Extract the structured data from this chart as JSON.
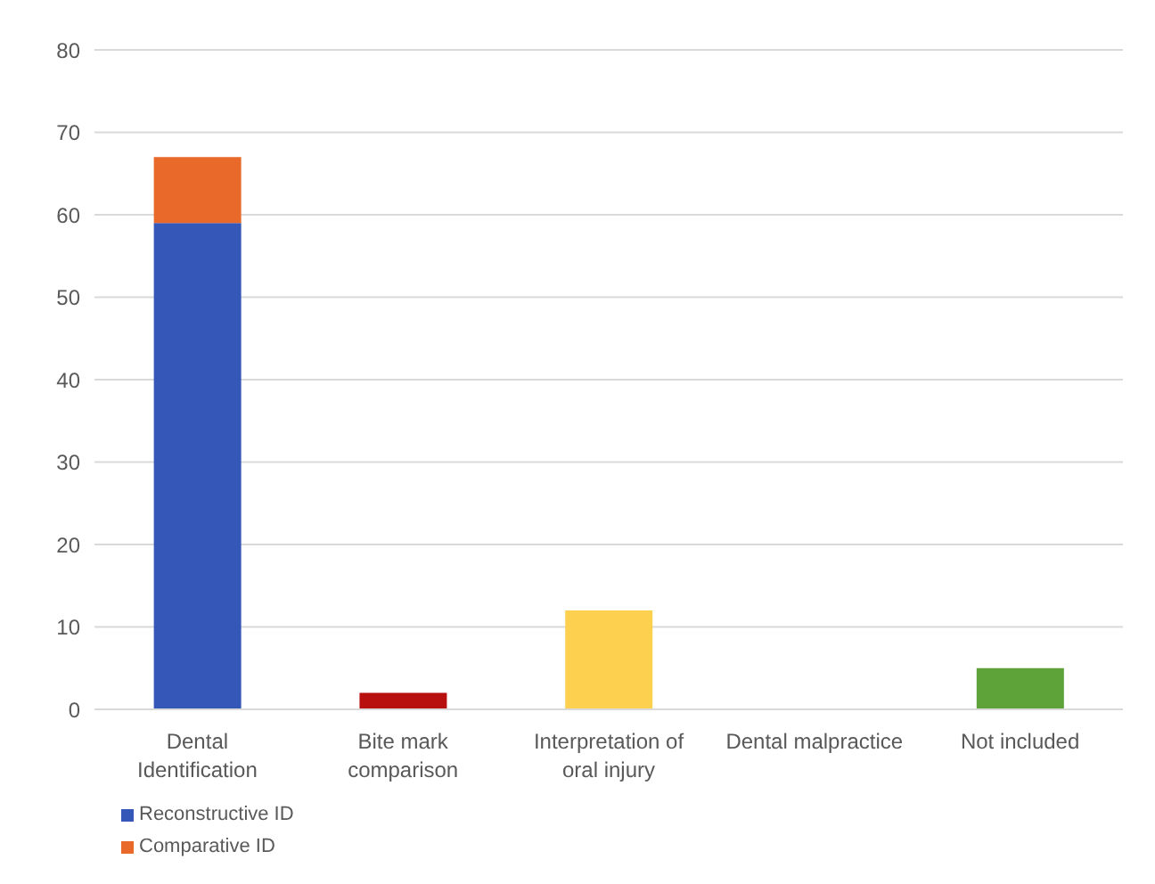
{
  "chart_data": {
    "type": "bar",
    "stacked": true,
    "categories": [
      "Dental Identification",
      "Bite mark comparison",
      "Interpretation of oral injury",
      "Dental malpractice",
      "Not included"
    ],
    "series": [
      {
        "name": "Reconstructive ID",
        "color": "#3457b8",
        "values": [
          59,
          null,
          null,
          null,
          null
        ]
      },
      {
        "name": "Comparative ID",
        "color": "#e8692a",
        "values": [
          8,
          null,
          null,
          null,
          null
        ]
      },
      {
        "colors": [
          null,
          "#b80f0f",
          "#fdd04f",
          null,
          "#5ea33a"
        ],
        "values": [
          null,
          2,
          12,
          0,
          5
        ]
      }
    ],
    "ylim": [
      0,
      80
    ],
    "yticks": [
      0,
      10,
      20,
      30,
      40,
      50,
      60,
      70,
      80
    ],
    "grid": "y",
    "legend": "bottom left"
  }
}
